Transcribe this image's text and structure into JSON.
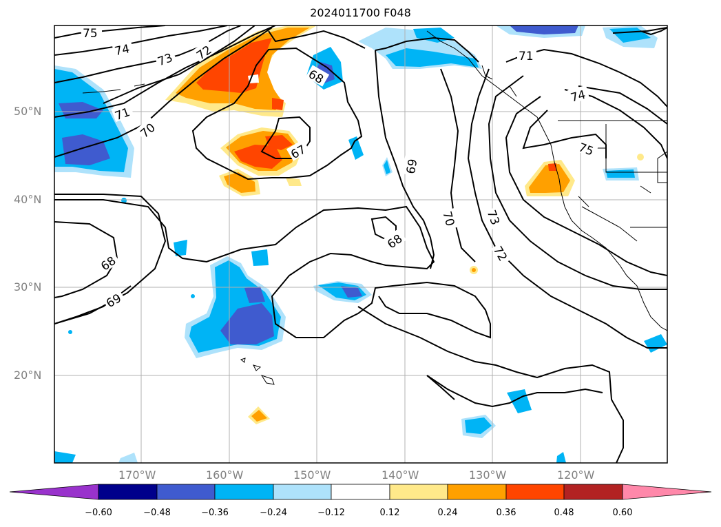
{
  "title": "2024011700 F048",
  "lat_labels": [
    "50°N",
    "40°N",
    "30°N",
    "20°N"
  ],
  "lon_labels": [
    "170°W",
    "160°W",
    "150°W",
    "140°W",
    "130°W",
    "120°W"
  ],
  "contour_labels": [
    "75",
    "74",
    "73",
    "72",
    "71",
    "70",
    "68",
    "67",
    "69",
    "68",
    "68",
    "69",
    "70",
    "73",
    "72",
    "71",
    "74",
    "75"
  ],
  "colorbar": {
    "ticks": [
      "−0.60",
      "−0.48",
      "−0.36",
      "−0.24",
      "−0.12",
      "0.12",
      "0.24",
      "0.36",
      "0.48",
      "0.60"
    ],
    "colors": [
      "#9932cc",
      "#00008b",
      "#3f5bcf",
      "#00b4f5",
      "#aee2fb",
      "#ffffff",
      "#ffe98a",
      "#ffa000",
      "#ff4500",
      "#b22222",
      "#ff88aa"
    ]
  },
  "colors": {
    "neg_dark": "#3f5bcf",
    "neg_mid": "#00b4f5",
    "neg_light": "#aee2fb",
    "pos_light": "#ffe98a",
    "pos_mid": "#ffa000",
    "pos_high": "#ff4500",
    "grid": "#b0b0b0"
  }
}
